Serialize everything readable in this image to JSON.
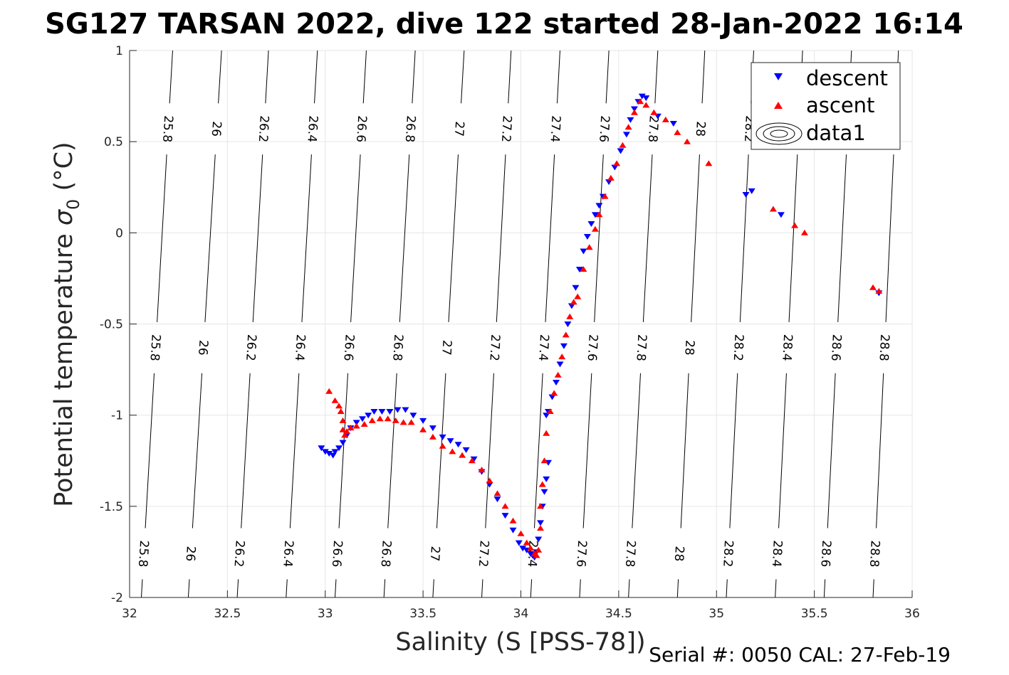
{
  "chart_data": {
    "type": "scatter",
    "title": "SG127 TARSAN 2022, dive 122 started 28-Jan-2022 16:14",
    "xlabel": "Salinity (S [PSS-78])",
    "ylabel_main": "Potential temperature ",
    "ylabel_sym": "σ",
    "ylabel_sub": "0",
    "ylabel_unit": " (°C)",
    "footer": "Serial #: 0050  CAL: 27-Feb-19",
    "xlim": [
      32,
      36
    ],
    "ylim": [
      -2,
      1
    ],
    "xticks": [
      32,
      32.5,
      33,
      33.5,
      34,
      34.5,
      35,
      35.5,
      36
    ],
    "xtick_labels": [
      "32",
      "32.5",
      "33",
      "33.5",
      "34",
      "34.5",
      "35",
      "35.5",
      "36"
    ],
    "yticks": [
      -2,
      -1.5,
      -1,
      -0.5,
      0,
      0.5,
      1
    ],
    "ytick_labels": [
      "-2",
      "-1.5",
      "-1",
      "-0.5",
      "0",
      "0.5",
      "1"
    ],
    "grid": true,
    "legend_position": "top-right",
    "colors": {
      "descent": "#0000ff",
      "ascent": "#ff0000",
      "contour": "#000000",
      "grid": "#e6e6e6",
      "axis": "#262626"
    },
    "isopycnals": {
      "levels": [
        25.8,
        26,
        26.2,
        26.4,
        26.6,
        26.8,
        27,
        27.2,
        27.4,
        27.6,
        27.8,
        28,
        28.2,
        28.4,
        28.6,
        28.8
      ],
      "labels": [
        "25.8",
        "26",
        "26.2",
        "26.4",
        "26.6",
        "26.8",
        "27",
        "27.2",
        "27.4",
        "27.6",
        "27.8",
        "28",
        "28.2",
        "28.4",
        "28.6",
        "28.8"
      ],
      "salinity_at_bottom": [
        32.06,
        32.3,
        32.55,
        32.8,
        33.05,
        33.3,
        33.55,
        33.8,
        34.05,
        34.3,
        34.55,
        34.8,
        35.05,
        35.3,
        35.55,
        35.8
      ],
      "salinity_at_top": [
        32.22,
        32.47,
        32.71,
        32.96,
        33.21,
        33.46,
        33.71,
        33.95,
        34.2,
        34.45,
        34.7,
        34.94,
        35.19,
        35.44,
        35.69,
        35.93
      ],
      "label_rows": [
        -1.76,
        -0.63,
        0.57
      ]
    },
    "series": [
      {
        "name": "descent",
        "marker": "triangle-down",
        "x": [
          32.98,
          33.0,
          33.02,
          33.04,
          33.05,
          33.07,
          33.09,
          33.11,
          33.13,
          33.16,
          33.19,
          33.22,
          33.25,
          33.29,
          33.33,
          33.37,
          33.41,
          33.45,
          33.5,
          33.55,
          33.6,
          33.64,
          33.68,
          33.72,
          33.76,
          33.8,
          33.84,
          33.88,
          33.92,
          33.96,
          33.99,
          34.01,
          34.03,
          34.05,
          34.06,
          34.07,
          34.08,
          34.09,
          34.1,
          34.11,
          34.12,
          34.13,
          34.14,
          34.13,
          34.14,
          34.16,
          34.18,
          34.2,
          34.22,
          34.24,
          34.26,
          34.28,
          34.3,
          34.32,
          34.34,
          34.36,
          34.38,
          34.4,
          34.42,
          34.45,
          34.48,
          34.51,
          34.54,
          34.56,
          34.58,
          34.6,
          34.62,
          34.64,
          34.7,
          34.78,
          35.15,
          35.18,
          35.33,
          35.83
        ],
        "y": [
          -1.18,
          -1.2,
          -1.21,
          -1.22,
          -1.2,
          -1.18,
          -1.15,
          -1.11,
          -1.07,
          -1.04,
          -1.02,
          -1.0,
          -0.98,
          -0.98,
          -0.98,
          -0.97,
          -0.97,
          -1.0,
          -1.03,
          -1.07,
          -1.12,
          -1.14,
          -1.16,
          -1.19,
          -1.24,
          -1.31,
          -1.38,
          -1.46,
          -1.55,
          -1.63,
          -1.7,
          -1.73,
          -1.74,
          -1.76,
          -1.77,
          -1.78,
          -1.75,
          -1.68,
          -1.59,
          -1.5,
          -1.42,
          -1.35,
          -1.26,
          -1.0,
          -0.98,
          -0.9,
          -0.82,
          -0.72,
          -0.62,
          -0.5,
          -0.4,
          -0.3,
          -0.2,
          -0.1,
          -0.02,
          0.05,
          0.1,
          0.15,
          0.2,
          0.28,
          0.36,
          0.45,
          0.54,
          0.62,
          0.68,
          0.72,
          0.75,
          0.74,
          0.64,
          0.6,
          0.21,
          0.23,
          0.1,
          -0.33
        ]
      },
      {
        "name": "ascent",
        "marker": "triangle-up",
        "x": [
          33.02,
          33.05,
          33.07,
          33.08,
          33.09,
          33.09,
          33.1,
          33.11,
          33.13,
          33.16,
          33.2,
          33.24,
          33.28,
          33.32,
          33.36,
          33.4,
          33.44,
          33.5,
          33.55,
          33.6,
          33.65,
          33.7,
          33.75,
          33.8,
          33.84,
          33.88,
          33.92,
          33.96,
          34.0,
          34.03,
          34.05,
          34.07,
          34.08,
          34.09,
          34.1,
          34.1,
          34.11,
          34.12,
          34.13,
          34.15,
          34.17,
          34.19,
          34.21,
          34.23,
          34.25,
          34.27,
          34.29,
          34.32,
          34.35,
          34.38,
          34.4,
          34.43,
          34.46,
          34.49,
          34.52,
          34.55,
          34.58,
          34.61,
          34.64,
          34.68,
          34.74,
          34.8,
          34.85,
          34.96,
          35.29,
          35.4,
          35.45,
          35.8,
          35.83
        ],
        "y": [
          -0.87,
          -0.92,
          -0.95,
          -0.98,
          -1.03,
          -1.08,
          -1.11,
          -1.09,
          -1.07,
          -1.06,
          -1.05,
          -1.03,
          -1.02,
          -1.02,
          -1.03,
          -1.04,
          -1.04,
          -1.08,
          -1.12,
          -1.17,
          -1.2,
          -1.22,
          -1.25,
          -1.3,
          -1.36,
          -1.43,
          -1.5,
          -1.58,
          -1.65,
          -1.7,
          -1.73,
          -1.76,
          -1.77,
          -1.74,
          -1.62,
          -1.5,
          -1.38,
          -1.25,
          -1.1,
          -0.98,
          -0.88,
          -0.78,
          -0.68,
          -0.56,
          -0.46,
          -0.38,
          -0.35,
          -0.2,
          -0.08,
          0.02,
          0.1,
          0.2,
          0.3,
          0.38,
          0.48,
          0.58,
          0.66,
          0.72,
          0.7,
          0.66,
          0.62,
          0.55,
          0.5,
          0.38,
          0.13,
          0.04,
          0.0,
          -0.3,
          -0.32
        ]
      }
    ],
    "legend": [
      {
        "label": "descent",
        "marker": "triangle-down",
        "color": "#0000ff"
      },
      {
        "label": "ascent",
        "marker": "triangle-up",
        "color": "#ff0000"
      },
      {
        "label": "data1",
        "marker": "contour-icon",
        "color": "#000000"
      }
    ]
  }
}
